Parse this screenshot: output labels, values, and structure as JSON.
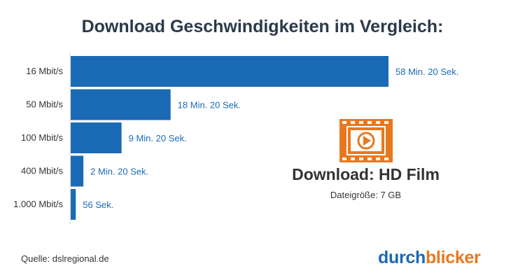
{
  "chart_data": {
    "type": "bar",
    "orientation": "horizontal",
    "title": "Download Geschwindigkeiten im Vergleich:",
    "categories": [
      "16 Mbit/s",
      "50 Mbit/s",
      "100 Mbit/s",
      "400 Mbit/s",
      "1.000 Mbit/s"
    ],
    "values": [
      3500,
      1100,
      560,
      140,
      56
    ],
    "value_unit": "Sekunden",
    "data_labels": [
      "58 Min. 20 Sek.",
      "18 Min. 20 Sek.",
      "9 Min. 20 Sek.",
      "2 Min. 20 Sek.",
      "56 Sek."
    ],
    "xlim": [
      0,
      3500
    ],
    "grid": false,
    "bar_color": "#1b6ab5"
  },
  "panel": {
    "icon": "film-play-icon",
    "icon_color": "#e8781e",
    "title": "Download: HD Film",
    "file_size": "Dateigröße: 7 GB"
  },
  "source": "Quelle: dslregional.de",
  "brand": {
    "part1": "durch",
    "part2": "blicker",
    "color1": "#1b6ab5",
    "color2": "#e8781e"
  }
}
